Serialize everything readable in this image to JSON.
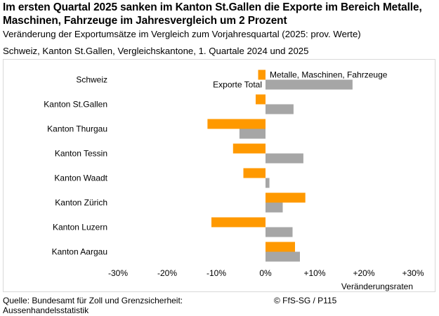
{
  "header": {
    "title": "Im ersten Quartal 2025 sanken im Kanton St.Gallen die Exporte im Bereich Metalle, Maschinen, Fahrzeuge im Jahresvergleich um 2 Prozent",
    "subtitle": "Veränderung der Exportumsätze im Vergleich zum Vorjahresquartal (2025: prov. Werte)",
    "subtitle2": "Schweiz, Kanton St.Gallen, Vergleichskantone, 1. Quartale 2024 und 2025"
  },
  "chart_data": {
    "type": "bar",
    "orientation": "horizontal",
    "categories": [
      "Schweiz",
      "Kanton St.Gallen",
      "Kanton Thurgau",
      "Kanton Tessin",
      "Kanton Waadt",
      "Kanton Zürich",
      "Kanton Luzern",
      "Kanton Aargau"
    ],
    "series": [
      {
        "name": "Metalle, Maschinen, Fahrzeuge",
        "color": "#ff9900",
        "values": [
          -1.5,
          -2.0,
          -11.8,
          -6.6,
          -4.5,
          8.1,
          -11.0,
          6.0
        ]
      },
      {
        "name": "Exporte Total",
        "color": "#a6a6a6",
        "values": [
          17.7,
          5.7,
          -5.3,
          7.7,
          0.8,
          3.5,
          5.5,
          7.0
        ]
      }
    ],
    "xlim": [
      -30,
      30
    ],
    "xticks": [
      -30,
      -20,
      -10,
      0,
      10,
      20,
      30
    ],
    "xtick_labels": [
      "-30%",
      "-20%",
      "-10%",
      "0%",
      "+10%",
      "+20%",
      "+30%"
    ],
    "xlabel": "Veränderungsraten",
    "ylabel": "",
    "grid": false,
    "legend": "inline labels on first category"
  },
  "footer": {
    "source_line1": "Quelle: Bundesamt für Zoll und Grenzsicherheit:",
    "source_line2": "Aussenhandelsstatistik",
    "copyright": "© FfS-SG / P115"
  }
}
